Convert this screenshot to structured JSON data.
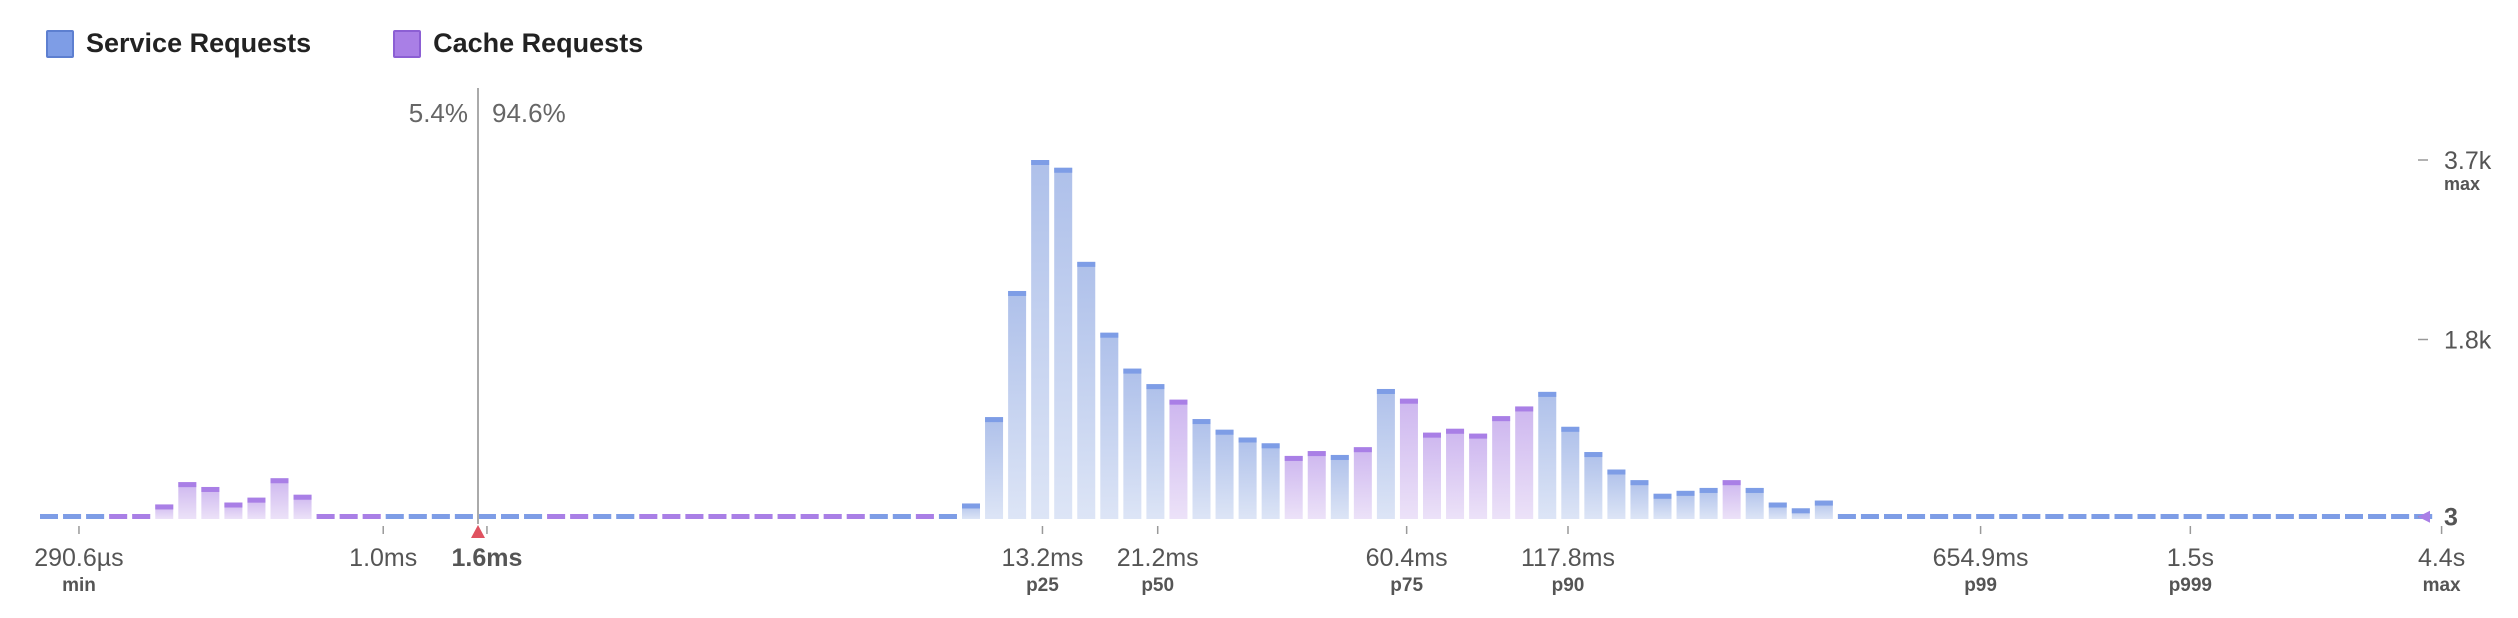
{
  "legend": {
    "service_label": "Service Requests",
    "cache_label": "Cache Requests"
  },
  "colors": {
    "service": "#7e9de6",
    "service_fill": "#c7d3f0",
    "cache": "#a97fe6",
    "cache_fill": "#dccbf3",
    "marker": "#e05260",
    "split_line": "#aaaaaa"
  },
  "split": {
    "left_pct": "5.4%",
    "right_pct": "94.6%",
    "threshold_label": "1.6ms"
  },
  "chart_data": {
    "type": "bar",
    "x_scale": "log",
    "series_order": [
      "Service Requests",
      "Cache Requests"
    ],
    "bars": [
      {
        "v": 3,
        "c": "s"
      },
      {
        "v": 3,
        "c": "s"
      },
      {
        "v": 3,
        "c": "s"
      },
      {
        "v": 3,
        "c": "c"
      },
      {
        "v": 3,
        "c": "c"
      },
      {
        "v": 150,
        "c": "c"
      },
      {
        "v": 380,
        "c": "c"
      },
      {
        "v": 330,
        "c": "c"
      },
      {
        "v": 170,
        "c": "c"
      },
      {
        "v": 220,
        "c": "c"
      },
      {
        "v": 420,
        "c": "c"
      },
      {
        "v": 250,
        "c": "c"
      },
      {
        "v": 30,
        "c": "c"
      },
      {
        "v": 3,
        "c": "c"
      },
      {
        "v": 3,
        "c": "c"
      },
      {
        "v": 3,
        "c": "s"
      },
      {
        "v": 3,
        "c": "s"
      },
      {
        "v": 3,
        "c": "s"
      },
      {
        "v": 3,
        "c": "s"
      },
      {
        "v": 3,
        "c": "s"
      },
      {
        "v": 3,
        "c": "s"
      },
      {
        "v": 3,
        "c": "s"
      },
      {
        "v": 3,
        "c": "c"
      },
      {
        "v": 3,
        "c": "c"
      },
      {
        "v": 3,
        "c": "s"
      },
      {
        "v": 3,
        "c": "s"
      },
      {
        "v": 3,
        "c": "c"
      },
      {
        "v": 3,
        "c": "c"
      },
      {
        "v": 3,
        "c": "c"
      },
      {
        "v": 3,
        "c": "c"
      },
      {
        "v": 3,
        "c": "c"
      },
      {
        "v": 3,
        "c": "c"
      },
      {
        "v": 3,
        "c": "c"
      },
      {
        "v": 3,
        "c": "c"
      },
      {
        "v": 3,
        "c": "c"
      },
      {
        "v": 3,
        "c": "c"
      },
      {
        "v": 3,
        "c": "s"
      },
      {
        "v": 3,
        "c": "s"
      },
      {
        "v": 3,
        "c": "c"
      },
      {
        "v": 3,
        "c": "s"
      },
      {
        "v": 160,
        "c": "s"
      },
      {
        "v": 1050,
        "c": "s"
      },
      {
        "v": 2350,
        "c": "s"
      },
      {
        "v": 3700,
        "c": "s"
      },
      {
        "v": 3620,
        "c": "s"
      },
      {
        "v": 2650,
        "c": "s"
      },
      {
        "v": 1920,
        "c": "s"
      },
      {
        "v": 1550,
        "c": "s"
      },
      {
        "v": 1390,
        "c": "s"
      },
      {
        "v": 1230,
        "c": "c"
      },
      {
        "v": 1030,
        "c": "s"
      },
      {
        "v": 920,
        "c": "s"
      },
      {
        "v": 840,
        "c": "s"
      },
      {
        "v": 780,
        "c": "s"
      },
      {
        "v": 650,
        "c": "c"
      },
      {
        "v": 700,
        "c": "c"
      },
      {
        "v": 660,
        "c": "s"
      },
      {
        "v": 740,
        "c": "c"
      },
      {
        "v": 1340,
        "c": "s"
      },
      {
        "v": 1240,
        "c": "c"
      },
      {
        "v": 890,
        "c": "c"
      },
      {
        "v": 930,
        "c": "c"
      },
      {
        "v": 880,
        "c": "c"
      },
      {
        "v": 1060,
        "c": "c"
      },
      {
        "v": 1160,
        "c": "c"
      },
      {
        "v": 1310,
        "c": "s"
      },
      {
        "v": 950,
        "c": "s"
      },
      {
        "v": 690,
        "c": "s"
      },
      {
        "v": 510,
        "c": "s"
      },
      {
        "v": 400,
        "c": "s"
      },
      {
        "v": 260,
        "c": "s"
      },
      {
        "v": 290,
        "c": "s"
      },
      {
        "v": 320,
        "c": "s"
      },
      {
        "v": 400,
        "c": "c"
      },
      {
        "v": 320,
        "c": "s"
      },
      {
        "v": 170,
        "c": "s"
      },
      {
        "v": 110,
        "c": "s"
      },
      {
        "v": 190,
        "c": "s"
      },
      {
        "v": 50,
        "c": "s"
      },
      {
        "v": 3,
        "c": "s"
      },
      {
        "v": 3,
        "c": "s"
      },
      {
        "v": 3,
        "c": "s"
      },
      {
        "v": 3,
        "c": "s"
      },
      {
        "v": 3,
        "c": "s"
      },
      {
        "v": 3,
        "c": "s"
      },
      {
        "v": 3,
        "c": "s"
      },
      {
        "v": 3,
        "c": "s"
      },
      {
        "v": 3,
        "c": "s"
      },
      {
        "v": 3,
        "c": "s"
      },
      {
        "v": 3,
        "c": "s"
      },
      {
        "v": 3,
        "c": "s"
      },
      {
        "v": 3,
        "c": "s"
      },
      {
        "v": 3,
        "c": "s"
      },
      {
        "v": 3,
        "c": "s"
      },
      {
        "v": 3,
        "c": "s"
      },
      {
        "v": 3,
        "c": "s"
      },
      {
        "v": 3,
        "c": "s"
      },
      {
        "v": 3,
        "c": "s"
      },
      {
        "v": 3,
        "c": "s"
      },
      {
        "v": 3,
        "c": "s"
      },
      {
        "v": 3,
        "c": "s"
      },
      {
        "v": 3,
        "c": "s"
      },
      {
        "v": 3,
        "c": "s"
      },
      {
        "v": 3,
        "c": "s"
      }
    ],
    "x_ticks": [
      {
        "label": "290.6µs",
        "sub": "min",
        "bar": 1.3
      },
      {
        "label": "1.0ms",
        "sub": "",
        "bar": 14.5
      },
      {
        "label": "1.6ms",
        "sub": "",
        "bar": 19.0,
        "bold": true
      },
      {
        "label": "13.2ms",
        "sub": "p25",
        "bar": 43.1
      },
      {
        "label": "21.2ms",
        "sub": "p50",
        "bar": 48.1
      },
      {
        "label": "60.4ms",
        "sub": "p75",
        "bar": 58.9
      },
      {
        "label": "117.8ms",
        "sub": "p90",
        "bar": 65.9
      },
      {
        "label": "654.9ms",
        "sub": "p99",
        "bar": 83.8
      },
      {
        "label": "1.5s",
        "sub": "p999",
        "bar": 92.9
      },
      {
        "label": "4.4s",
        "sub": "max",
        "bar": 103.8
      }
    ],
    "y_ticks": [
      {
        "value": 3700,
        "label": "3.7k",
        "sub": "max"
      },
      {
        "value": 1850,
        "label": "1.8k",
        "sub": ""
      },
      {
        "value": 3,
        "label": "3",
        "sub": "",
        "bold": true
      }
    ],
    "ylim": [
      0,
      3700
    ]
  }
}
